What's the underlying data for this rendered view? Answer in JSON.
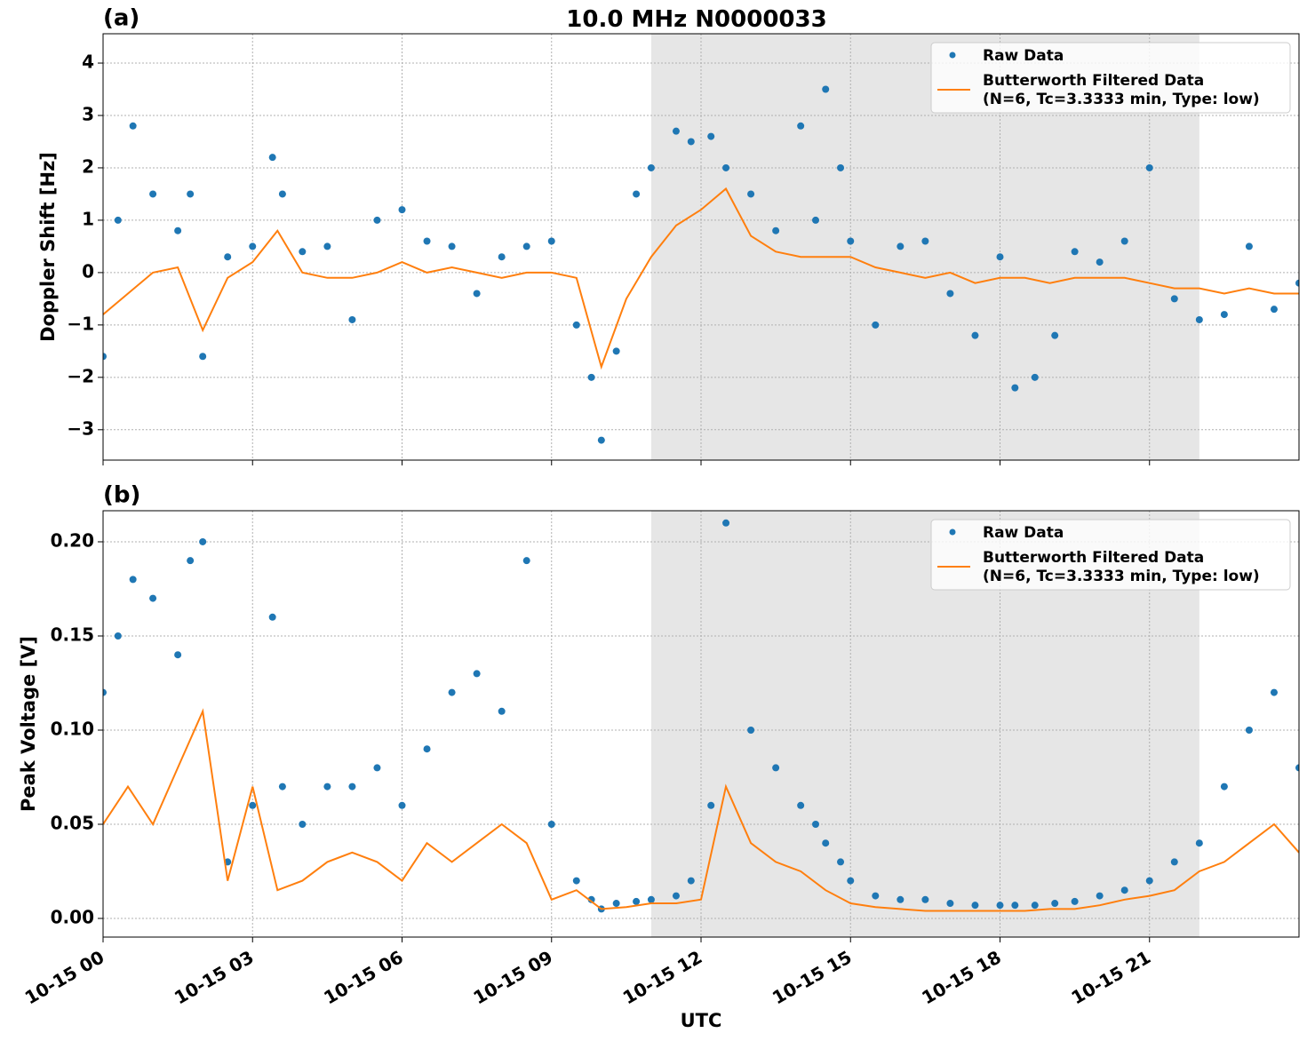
{
  "chart_data": [
    {
      "type": "line",
      "title": "10.0 MHz N0000033",
      "panel_label": "(a)",
      "ylabel": "Doppler Shift [Hz]",
      "xlim": [
        0,
        24
      ],
      "xticks": [
        0,
        3,
        6,
        9,
        12,
        15,
        18,
        21
      ],
      "ylim": [
        -3.58,
        4.56
      ],
      "yticks": [
        {
          "value": -3,
          "label": "−3"
        },
        {
          "value": -2,
          "label": "−2"
        },
        {
          "value": -1,
          "label": "−1"
        },
        0,
        1,
        2,
        3,
        4
      ],
      "grid": true,
      "shaded_span": [
        11,
        22
      ],
      "legend": "upper right",
      "series": [
        {
          "name": "Raw Data",
          "color": "#1f77b4",
          "style": "scatter",
          "x": [
            0,
            0.3,
            0.6,
            1,
            1.5,
            1.75,
            2,
            2.5,
            3,
            3.4,
            3.6,
            4,
            4.5,
            5,
            5.5,
            6,
            6.5,
            7,
            7.5,
            8,
            8.5,
            9,
            9.5,
            9.8,
            10,
            10.3,
            10.7,
            11,
            11.5,
            11.8,
            12.2,
            12.5,
            13,
            13.5,
            14,
            14.3,
            14.5,
            14.8,
            15,
            15.5,
            16,
            16.5,
            17,
            17.5,
            18,
            18.3,
            18.7,
            19.1,
            19.5,
            20,
            20.5,
            21,
            21.5,
            22,
            22.5,
            23,
            23.5,
            24
          ],
          "values": [
            -1.6,
            1.0,
            2.8,
            1.5,
            0.8,
            1.5,
            -1.6,
            0.3,
            0.5,
            2.2,
            1.5,
            0.4,
            0.5,
            -0.9,
            1.0,
            1.2,
            0.6,
            0.5,
            -0.4,
            0.3,
            0.5,
            0.6,
            -1.0,
            -2.0,
            -3.2,
            -1.5,
            1.5,
            2.0,
            2.7,
            2.5,
            2.6,
            2.0,
            1.5,
            0.8,
            2.8,
            1.0,
            3.5,
            2.0,
            0.6,
            -1.0,
            0.5,
            0.6,
            -0.4,
            -1.2,
            0.3,
            -2.2,
            -2.0,
            -1.2,
            0.4,
            0.2,
            0.6,
            2.0,
            -0.5,
            -0.9,
            -0.8,
            0.5,
            -0.7,
            -0.2
          ]
        },
        {
          "name": "Butterworth Filtered Data",
          "filter_label": "(N=6, Tc=3.3333 min, Type: low)",
          "color": "#ff7f0e",
          "style": "line",
          "x": [
            0,
            0.5,
            1,
            1.5,
            2,
            2.5,
            3,
            3.5,
            4,
            4.5,
            5,
            5.5,
            6,
            6.5,
            7,
            7.5,
            8,
            8.5,
            9,
            9.5,
            10,
            10.5,
            11,
            11.5,
            12,
            12.5,
            13,
            13.5,
            14,
            14.5,
            15,
            15.5,
            16,
            16.5,
            17,
            17.5,
            18,
            18.5,
            19,
            19.5,
            20,
            20.5,
            21,
            21.5,
            22,
            22.5,
            23,
            23.5,
            24
          ],
          "values": [
            -0.8,
            -0.4,
            0.0,
            0.1,
            -1.1,
            -0.1,
            0.2,
            0.8,
            0.0,
            -0.1,
            -0.1,
            0.0,
            0.2,
            0.0,
            0.1,
            0.0,
            -0.1,
            0.0,
            0.0,
            -0.1,
            -1.8,
            -0.5,
            0.3,
            0.9,
            1.2,
            1.6,
            0.7,
            0.4,
            0.3,
            0.3,
            0.3,
            0.1,
            0.0,
            -0.1,
            0.0,
            -0.2,
            -0.1,
            -0.1,
            -0.2,
            -0.1,
            -0.1,
            -0.1,
            -0.2,
            -0.3,
            -0.3,
            -0.4,
            -0.3,
            -0.4,
            -0.4
          ]
        }
      ]
    },
    {
      "type": "line",
      "panel_label": "(b)",
      "ylabel": "Peak Voltage [V]",
      "xlabel": "UTC",
      "xlim": [
        0,
        24
      ],
      "xticks": [
        {
          "value": 0,
          "label": "10-15 00"
        },
        {
          "value": 3,
          "label": "10-15 03"
        },
        {
          "value": 6,
          "label": "10-15 06"
        },
        {
          "value": 9,
          "label": "10-15 09"
        },
        {
          "value": 12,
          "label": "10-15 12"
        },
        {
          "value": 15,
          "label": "10-15 15"
        },
        {
          "value": 18,
          "label": "10-15 18"
        },
        {
          "value": 21,
          "label": "10-15 21"
        }
      ],
      "ylim": [
        -0.0099,
        0.2165
      ],
      "yticks": [
        {
          "value": 0,
          "label": "0.00"
        },
        {
          "value": 0.05,
          "label": "0.05"
        },
        {
          "value": 0.1,
          "label": "0.10"
        },
        {
          "value": 0.15,
          "label": "0.15"
        },
        {
          "value": 0.2,
          "label": "0.20"
        }
      ],
      "grid": true,
      "shaded_span": [
        11,
        22
      ],
      "legend": "upper right",
      "series": [
        {
          "name": "Raw Data",
          "color": "#1f77b4",
          "style": "scatter",
          "x": [
            0,
            0.3,
            0.6,
            1,
            1.5,
            1.75,
            2,
            2.5,
            3,
            3.4,
            3.6,
            4,
            4.5,
            5,
            5.5,
            6,
            6.5,
            7,
            7.5,
            8,
            8.5,
            9,
            9.5,
            9.8,
            10,
            10.3,
            10.7,
            11,
            11.5,
            11.8,
            12.2,
            12.5,
            13,
            13.5,
            14,
            14.3,
            14.5,
            14.8,
            15,
            15.5,
            16,
            16.5,
            17,
            17.5,
            18,
            18.3,
            18.7,
            19.1,
            19.5,
            20,
            20.5,
            21,
            21.5,
            22,
            22.5,
            23,
            23.5,
            24
          ],
          "values": [
            0.12,
            0.15,
            0.18,
            0.17,
            0.14,
            0.19,
            0.2,
            0.03,
            0.06,
            0.16,
            0.07,
            0.05,
            0.07,
            0.07,
            0.08,
            0.06,
            0.09,
            0.12,
            0.13,
            0.11,
            0.19,
            0.05,
            0.02,
            0.01,
            0.005,
            0.008,
            0.009,
            0.01,
            0.012,
            0.02,
            0.06,
            0.21,
            0.1,
            0.08,
            0.06,
            0.05,
            0.04,
            0.03,
            0.02,
            0.012,
            0.01,
            0.01,
            0.008,
            0.007,
            0.007,
            0.007,
            0.007,
            0.008,
            0.009,
            0.012,
            0.015,
            0.02,
            0.03,
            0.04,
            0.07,
            0.1,
            0.12,
            0.08
          ]
        },
        {
          "name": "Butterworth Filtered Data",
          "filter_label": "(N=6, Tc=3.3333 min, Type: low)",
          "color": "#ff7f0e",
          "style": "line",
          "x": [
            0,
            0.5,
            1,
            1.5,
            2,
            2.5,
            3,
            3.5,
            4,
            4.5,
            5,
            5.5,
            6,
            6.5,
            7,
            7.5,
            8,
            8.5,
            9,
            9.5,
            10,
            10.5,
            11,
            11.5,
            12,
            12.5,
            13,
            13.5,
            14,
            14.5,
            15,
            15.5,
            16,
            16.5,
            17,
            17.5,
            18,
            18.5,
            19,
            19.5,
            20,
            20.5,
            21,
            21.5,
            22,
            22.5,
            23,
            23.5,
            24
          ],
          "values": [
            0.05,
            0.07,
            0.05,
            0.08,
            0.11,
            0.02,
            0.07,
            0.015,
            0.02,
            0.03,
            0.035,
            0.03,
            0.02,
            0.04,
            0.03,
            0.04,
            0.05,
            0.04,
            0.01,
            0.015,
            0.005,
            0.006,
            0.008,
            0.008,
            0.01,
            0.07,
            0.04,
            0.03,
            0.025,
            0.015,
            0.008,
            0.006,
            0.005,
            0.004,
            0.004,
            0.004,
            0.004,
            0.004,
            0.005,
            0.005,
            0.007,
            0.01,
            0.012,
            0.015,
            0.025,
            0.03,
            0.04,
            0.05,
            0.035
          ]
        }
      ]
    }
  ]
}
